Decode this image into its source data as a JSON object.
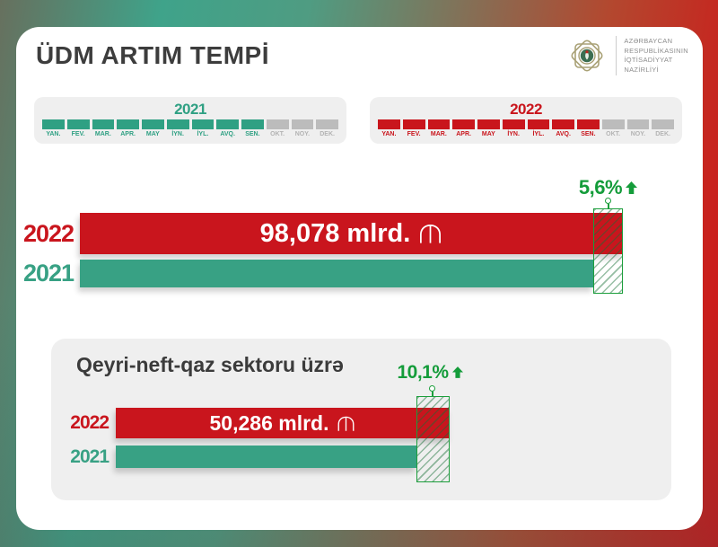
{
  "page": {
    "title": "ÜDM ARTIM TEMPİ"
  },
  "logo": {
    "lines": [
      "AZƏRBAYCAN",
      "RESPUBLİKASININ",
      "İQTİSADİYYAT",
      "NAZİRLİYİ"
    ]
  },
  "timelines": [
    {
      "year": "2021",
      "color": "#2fa083",
      "months": [
        {
          "label": "YAN.",
          "active": true
        },
        {
          "label": "FEV.",
          "active": true
        },
        {
          "label": "MAR.",
          "active": true
        },
        {
          "label": "APR.",
          "active": true
        },
        {
          "label": "MAY",
          "active": true
        },
        {
          "label": "İYN.",
          "active": true
        },
        {
          "label": "İYL.",
          "active": true
        },
        {
          "label": "AVQ.",
          "active": true
        },
        {
          "label": "SEN.",
          "active": true
        },
        {
          "label": "OKT.",
          "active": false
        },
        {
          "label": "NOY.",
          "active": false
        },
        {
          "label": "DEK.",
          "active": false
        }
      ]
    },
    {
      "year": "2022",
      "color": "#c9151c",
      "months": [
        {
          "label": "YAN.",
          "active": true
        },
        {
          "label": "FEV.",
          "active": true
        },
        {
          "label": "MAR.",
          "active": true
        },
        {
          "label": "APR.",
          "active": true
        },
        {
          "label": "MAY",
          "active": true
        },
        {
          "label": "İYN.",
          "active": true
        },
        {
          "label": "İYL.",
          "active": true
        },
        {
          "label": "AVQ.",
          "active": true
        },
        {
          "label": "SEN.",
          "active": true
        },
        {
          "label": "OKT.",
          "active": false
        },
        {
          "label": "NOY.",
          "active": false
        },
        {
          "label": "DEK.",
          "active": false
        }
      ]
    }
  ],
  "main_chart": {
    "growth": "5,6%",
    "bars": [
      {
        "year": "2022",
        "value": "98,078 mlrd."
      },
      {
        "year": "2021",
        "value": ""
      }
    ]
  },
  "non_oil": {
    "title": "Qeyri-neft-qaz sektoru üzrə",
    "growth": "10,1%",
    "bars": [
      {
        "year": "2022",
        "value": "50,286 mlrd."
      },
      {
        "year": "2021",
        "value": ""
      }
    ]
  },
  "colors": {
    "red": "#c9151d",
    "teal": "#38a184",
    "green_accent": "#149c3a",
    "panel_gray": "#efefef",
    "inactive_gray": "#bcbcbc"
  },
  "chart_data": [
    {
      "type": "bar",
      "orientation": "horizontal",
      "title": "ÜDM ARTIM TEMPİ",
      "categories": [
        "2022",
        "2021"
      ],
      "values": [
        98.078,
        null
      ],
      "value_labels": [
        "98,078 mlrd. ₼",
        ""
      ],
      "growth_label": "5,6%",
      "growth_percent": 5.6,
      "unit": "mlrd. ₼",
      "period_months_active": [
        "YAN.",
        "FEV.",
        "MAR.",
        "APR.",
        "MAY",
        "İYN.",
        "İYL.",
        "AVQ.",
        "SEN."
      ],
      "legend_position": "left",
      "grid": false
    },
    {
      "type": "bar",
      "orientation": "horizontal",
      "title": "Qeyri-neft-qaz sektoru üzrə",
      "categories": [
        "2022",
        "2021"
      ],
      "values": [
        50.286,
        null
      ],
      "value_labels": [
        "50,286 mlrd. ₼",
        ""
      ],
      "growth_label": "10,1%",
      "growth_percent": 10.1,
      "unit": "mlrd. ₼",
      "period_months_active": [
        "YAN.",
        "FEV.",
        "MAR.",
        "APR.",
        "MAY",
        "İYN.",
        "İYL.",
        "AVQ.",
        "SEN."
      ],
      "legend_position": "left",
      "grid": false
    }
  ]
}
